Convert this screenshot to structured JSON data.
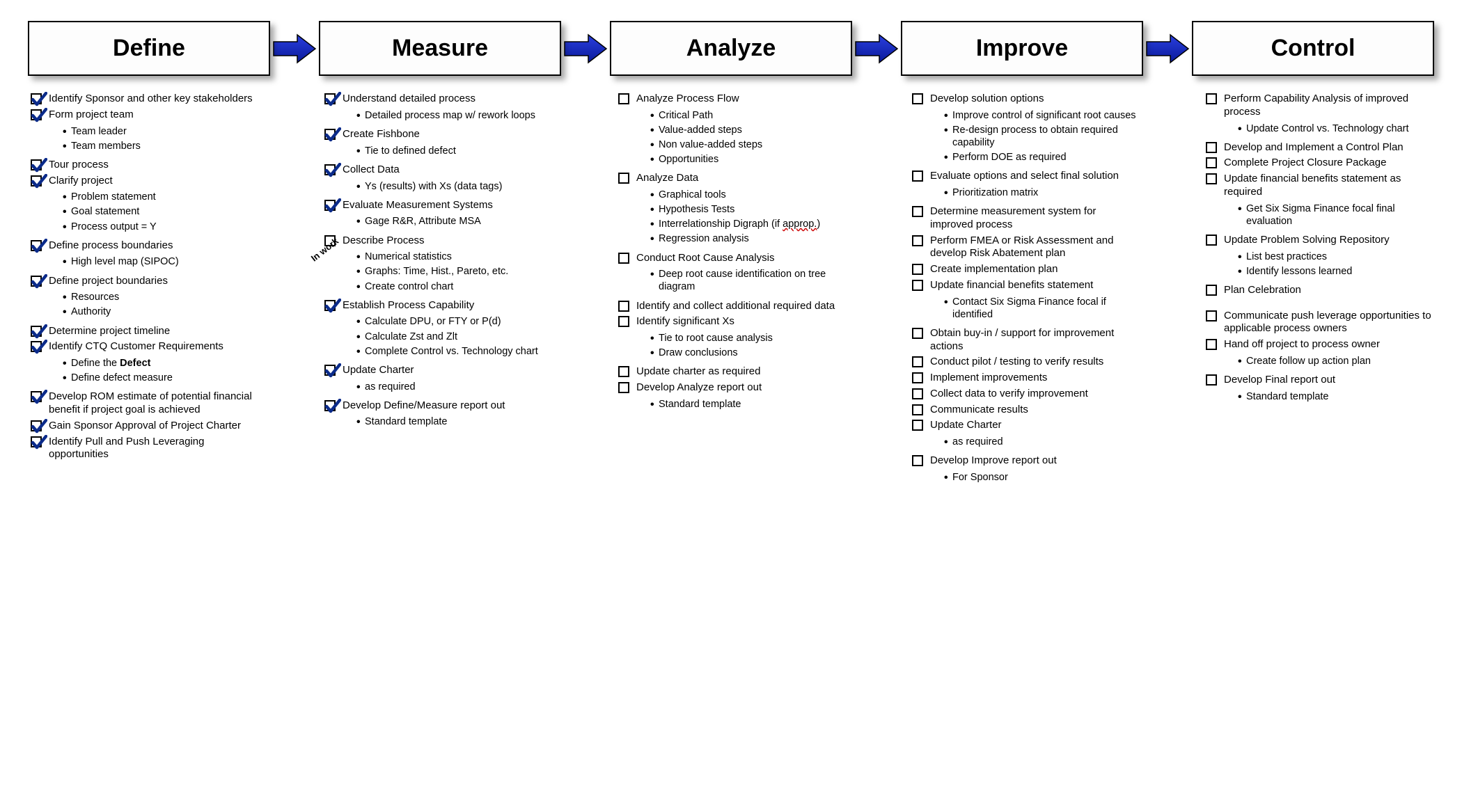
{
  "type": "flowchart",
  "layout": "horizontal-5-column",
  "background_color": "#ffffff",
  "text_color": "#000000",
  "box_border_color": "#000000",
  "box_shadow": "6px 6px 8px rgba(0,0,0,0.35)",
  "arrow_fill_start": "#2a3fe0",
  "arrow_fill_end": "#0a1a99",
  "arrow_stroke": "#000000",
  "check_stroke": "#0b2b8a",
  "header_fontsize": 34,
  "item_fontsize": 15,
  "subitem_fontsize": 14.5,
  "in_work_annotation": "In work",
  "phases": [
    {
      "title": "Define",
      "items": [
        {
          "label": "Identify Sponsor and other key stakeholders",
          "checked": true
        },
        {
          "label": "Form project team",
          "checked": true,
          "sub": [
            "Team leader",
            "Team members"
          ]
        },
        {
          "label": "Tour process",
          "checked": true
        },
        {
          "label": "Clarify project",
          "checked": true,
          "sub": [
            "Problem statement",
            "Goal statement",
            "Process output = Y"
          ]
        },
        {
          "label": "Define process boundaries",
          "checked": true,
          "sub": [
            "High level map (SIPOC)"
          ]
        },
        {
          "label": "Define project boundaries",
          "checked": true,
          "sub": [
            "Resources",
            "Authority"
          ]
        },
        {
          "label": "Determine project timeline",
          "checked": true
        },
        {
          "label": "Identify CTQ Customer Requirements",
          "checked": true,
          "sub": [
            "Define the <b>Defect</b>",
            "Define defect measure"
          ]
        },
        {
          "label": "Develop ROM estimate of potential financial benefit if project goal is achieved",
          "checked": true
        },
        {
          "label": "Gain Sponsor Approval of Project Charter",
          "checked": true
        },
        {
          "label": "Identify Pull and Push Leveraging opportunities",
          "checked": true
        }
      ]
    },
    {
      "title": "Measure",
      "items": [
        {
          "label": "Understand detailed process",
          "checked": true,
          "sub": [
            "Detailed process map w/ rework loops"
          ]
        },
        {
          "label": "Create Fishbone",
          "checked": true,
          "sub": [
            "Tie to defined defect"
          ]
        },
        {
          "label": "Collect Data",
          "checked": true,
          "sub": [
            "Ys (results)  with Xs (data tags)"
          ]
        },
        {
          "label": "Evaluate Measurement Systems",
          "checked": true,
          "sub": [
            "Gage R&R, Attribute MSA"
          ]
        },
        {
          "label": "Describe Process",
          "checked": false,
          "in_work": true,
          "sub": [
            "Numerical statistics",
            "Graphs: Time, Hist., Pareto, etc.",
            "Create control chart"
          ]
        },
        {
          "label": "Establish Process Capability",
          "checked": true,
          "sub": [
            "Calculate DPU, or FTY or P(d)",
            "Calculate Zst and Zlt",
            "Complete Control vs. Technology chart"
          ]
        },
        {
          "label": "Update Charter",
          "checked": true,
          "sub": [
            "as required"
          ]
        },
        {
          "label": "Develop Define/Measure report out",
          "checked": true,
          "sub": [
            "Standard template"
          ]
        }
      ]
    },
    {
      "title": "Analyze",
      "items": [
        {
          "label": "Analyze Process Flow",
          "checked": false,
          "sub": [
            "Critical Path",
            "Value-added steps",
            "Non value-added steps",
            "Opportunities"
          ]
        },
        {
          "label": "Analyze Data",
          "checked": false,
          "sub": [
            "Graphical tools",
            "Hypothesis Tests",
            "Interrelationship Digraph (if <span class=\"underline-red\">approp.</span>)",
            "Regression analysis"
          ]
        },
        {
          "label": "Conduct Root Cause Analysis",
          "checked": false,
          "sub": [
            "Deep root cause identification on tree diagram"
          ]
        },
        {
          "label": "Identify and collect additional required data",
          "checked": false
        },
        {
          "label": "Identify significant Xs",
          "checked": false,
          "sub": [
            "Tie to root cause analysis",
            "Draw conclusions"
          ]
        },
        {
          "label": "Update charter as required",
          "checked": false
        },
        {
          "label": "Develop Analyze report out",
          "checked": false,
          "sub": [
            "Standard template"
          ]
        }
      ]
    },
    {
      "title": "Improve",
      "items": [
        {
          "label": "Develop solution options",
          "checked": false,
          "sub": [
            "Improve control of significant root causes",
            "Re-design process to obtain required capability",
            "Perform DOE as required"
          ]
        },
        {
          "label": "Evaluate options and select final solution",
          "checked": false,
          "sub": [
            "Prioritization matrix"
          ]
        },
        {
          "label": "Determine measurement system for improved process",
          "checked": false
        },
        {
          "label": "Perform FMEA or Risk Assessment and develop Risk Abatement plan",
          "checked": false
        },
        {
          "label": "Create implementation plan",
          "checked": false
        },
        {
          "label": "Update financial benefits statement",
          "checked": false,
          "sub": [
            "Contact Six Sigma Finance focal if identified"
          ]
        },
        {
          "label": "Obtain buy-in / support for improvement actions",
          "checked": false
        },
        {
          "label": "Conduct pilot / testing to verify results",
          "checked": false
        },
        {
          "label": "Implement improvements",
          "checked": false
        },
        {
          "label": "Collect data to verify improvement",
          "checked": false
        },
        {
          "label": "Communicate results",
          "checked": false
        },
        {
          "label": "Update Charter",
          "checked": false,
          "sub": [
            "as required"
          ]
        },
        {
          "label": "Develop Improve report out",
          "checked": false,
          "sub": [
            "For Sponsor"
          ]
        }
      ]
    },
    {
      "title": "Control",
      "items": [
        {
          "label": "Perform  Capability Analysis of improved process",
          "checked": false,
          "sub": [
            "Update Control vs. Technology chart"
          ]
        },
        {
          "label": "Develop and Implement a Control Plan",
          "checked": false
        },
        {
          "label": "Complete Project Closure Package",
          "checked": false
        },
        {
          "label": "Update financial benefits statement as required",
          "checked": false,
          "sub": [
            "Get Six Sigma Finance focal final evaluation"
          ]
        },
        {
          "label": "Update Problem Solving Repository",
          "checked": false,
          "sub": [
            "List best practices",
            "Identify lessons learned"
          ]
        },
        {
          "label": "Plan Celebration",
          "checked": false,
          "spacer_after": true
        },
        {
          "label": "Communicate push leverage opportunities to applicable process owners",
          "checked": false
        },
        {
          "label": "Hand off project to process owner",
          "checked": false,
          "sub": [
            "Create follow up action plan"
          ]
        },
        {
          "label": "Develop Final report out",
          "checked": false,
          "sub": [
            "Standard template"
          ]
        }
      ]
    }
  ]
}
